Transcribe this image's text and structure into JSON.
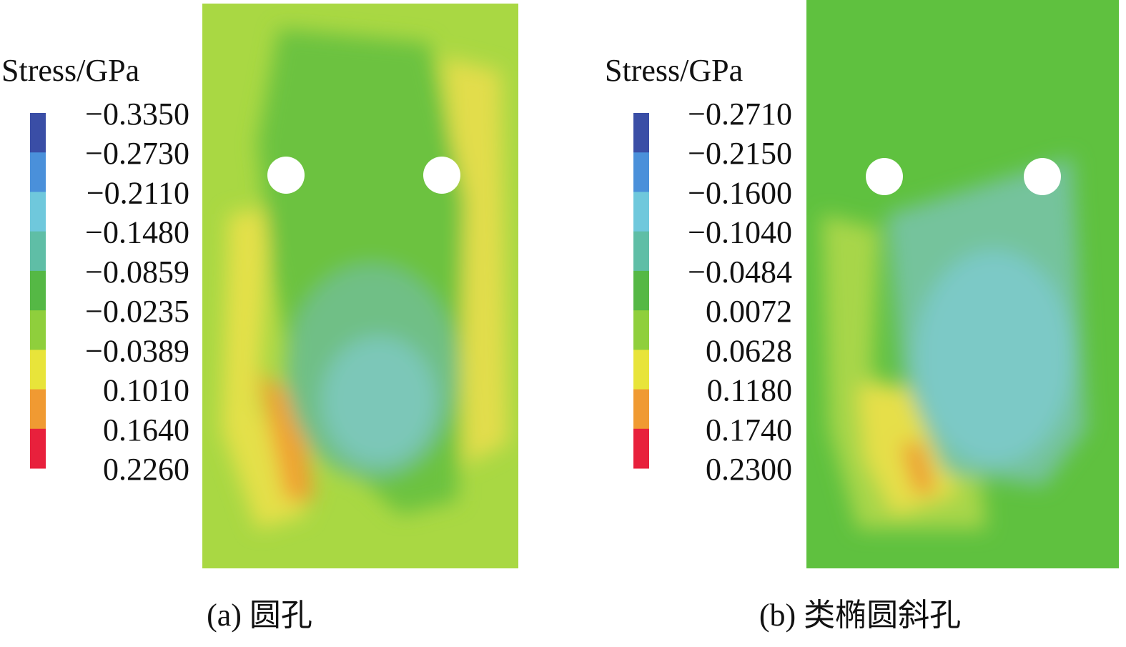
{
  "panels": [
    {
      "legend_title": "Stress/GPa",
      "ticks": [
        "−0.3350",
        "−0.2730",
        "−0.2110",
        "−0.1480",
        "−0.0859",
        "−0.0235",
        "−0.0389",
        "0.1010",
        "0.1640",
        "0.2260"
      ],
      "caption": "(a) 圆孔"
    },
    {
      "legend_title": "Stress/GPa",
      "ticks": [
        "−0.2710",
        "−0.2150",
        "−0.1600",
        "−0.1040",
        "−0.0484",
        "0.0072",
        "0.0628",
        "0.1180",
        "0.1740",
        "0.2300"
      ],
      "caption": "(b) 类椭圆斜孔"
    }
  ]
}
